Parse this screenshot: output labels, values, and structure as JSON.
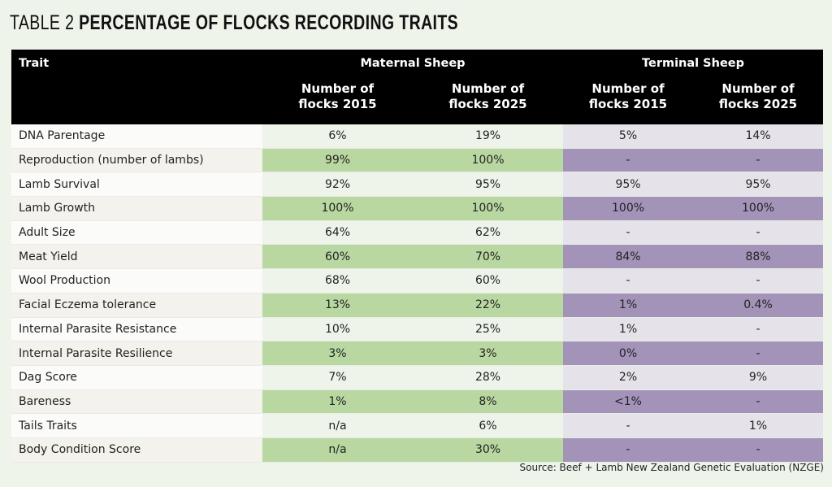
{
  "title": {
    "lead": "TABLE 2",
    "main": "PERCENTAGE OF FLOCKS RECORDING TRAITS"
  },
  "header": {
    "trait": "Trait",
    "maternal": "Maternal Sheep",
    "terminal": "Terminal Sheep",
    "sub": [
      {
        "line1": "Number of",
        "line2": "flocks 2015"
      },
      {
        "line1": "Number of",
        "line2": "flocks 2025"
      },
      {
        "line1": "Number of",
        "line2": "flocks 2015"
      },
      {
        "line1": "Number of",
        "line2": "flocks 2025"
      }
    ]
  },
  "rows": [
    [
      "DNA Parentage",
      "6%",
      "19%",
      "5%",
      "14%"
    ],
    [
      "Reproduction (number of lambs)",
      "99%",
      "100%",
      "-",
      "-"
    ],
    [
      "Lamb Survival",
      "92%",
      "95%",
      "95%",
      "95%"
    ],
    [
      "Lamb Growth",
      "100%",
      "100%",
      "100%",
      "100%"
    ],
    [
      "Adult Size",
      "64%",
      "62%",
      "-",
      "-"
    ],
    [
      "Meat Yield",
      "60%",
      "70%",
      "84%",
      "88%"
    ],
    [
      "Wool Production",
      "68%",
      "60%",
      "-",
      "-"
    ],
    [
      "Facial Eczema tolerance",
      "13%",
      "22%",
      "1%",
      "0.4%"
    ],
    [
      "Internal Parasite Resistance",
      "10%",
      "25%",
      "1%",
      "-"
    ],
    [
      "Internal Parasite Resilience",
      "3%",
      "3%",
      "0%",
      "-"
    ],
    [
      "Dag Score",
      "7%",
      "28%",
      "2%",
      "9%"
    ],
    [
      "Bareness",
      "1%",
      "8%",
      "<1%",
      "-"
    ],
    [
      "Tails Traits",
      "n/a",
      "6%",
      "-",
      "1%"
    ],
    [
      "Body Condition Score",
      "n/a",
      "30%",
      "-",
      "-"
    ]
  ],
  "source": "Source: Beef + Lamb New Zealand Genetic Evaluation (NZGE)",
  "colors": {
    "background": "#eef4ea",
    "maternal_dark": "#b9d7a1",
    "terminal_dark": "#a393b8",
    "terminal_light": "#e6e2ea",
    "header": "#000000"
  }
}
